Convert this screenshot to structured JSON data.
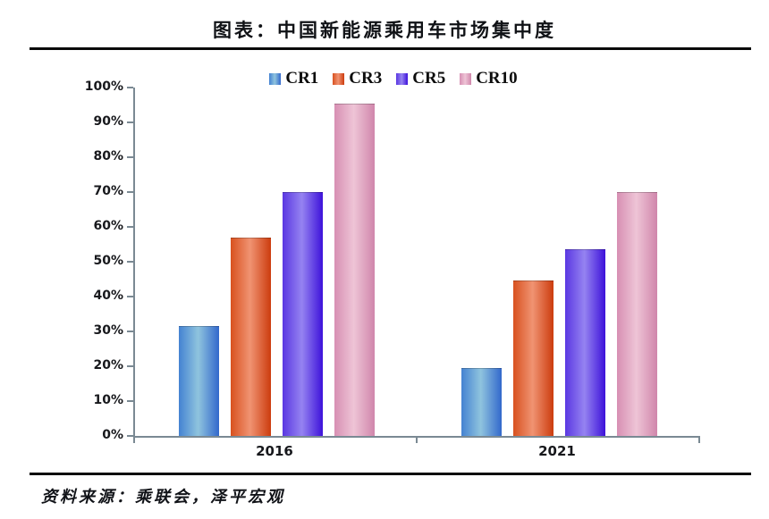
{
  "page": {
    "title": "图表：中国新能源乘用车市场集中度",
    "source_note": "资料来源：乘联会，泽平宏观"
  },
  "chart_data": {
    "type": "bar",
    "title": "图表：中国新能源乘用车市场集中度",
    "categories": [
      "2016",
      "2021"
    ],
    "series": [
      {
        "name": "CR1",
        "values": [
          31.5,
          19.5
        ],
        "colors": {
          "left": "#4482d2",
          "mid": "#8fc4de",
          "right": "#3268cc"
        }
      },
      {
        "name": "CR3",
        "values": [
          57.0,
          44.5
        ],
        "colors": {
          "left": "#d8511f",
          "mid": "#f09372",
          "right": "#cc3c0e"
        }
      },
      {
        "name": "CR5",
        "values": [
          70.0,
          53.5
        ],
        "colors": {
          "left": "#5a37e2",
          "mid": "#9583f1",
          "right": "#3d11da"
        }
      },
      {
        "name": "CR10",
        "values": [
          95.5,
          70.0
        ],
        "colors": {
          "left": "#d78fb3",
          "mid": "#eec4d6",
          "right": "#d086ab"
        }
      }
    ],
    "xlabel": "",
    "ylabel": "",
    "ylim": [
      0,
      100
    ],
    "y_tick_labels": [
      "0%",
      "10%",
      "20%",
      "30%",
      "40%",
      "50%",
      "60%",
      "70%",
      "80%",
      "90%",
      "100%"
    ],
    "value_unit": "%",
    "grid": false,
    "legend_position": "top",
    "axis_color": "#7a8993"
  }
}
